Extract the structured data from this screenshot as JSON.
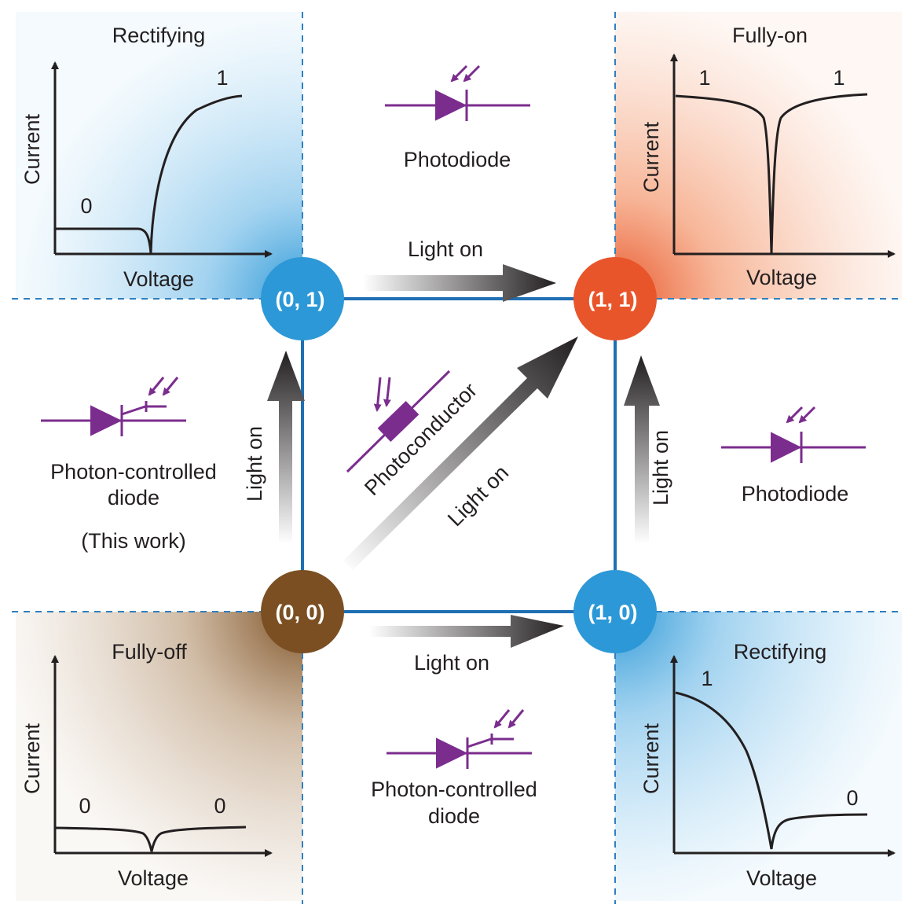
{
  "nodes": {
    "n00": {
      "label": "(0, 0)",
      "color": "#7b4f22"
    },
    "n01": {
      "label": "(0, 1)",
      "color": "#2c98d7"
    },
    "n10": {
      "label": "(1, 0)",
      "color": "#2c98d7"
    },
    "n11": {
      "label": "(1, 1)",
      "color": "#e8552a"
    }
  },
  "arrows": {
    "top": "Light on",
    "bottom": "Light on",
    "left": "Light on",
    "right": "Light on",
    "diagonal": "Light on"
  },
  "devices": {
    "top": "Photodiode",
    "right": "Photodiode",
    "center": "Photoconductor",
    "left_line1": "Photon-controlled",
    "left_line2": "diode",
    "left_note": "(This work)",
    "bottom_line1": "Photon-controlled",
    "bottom_line2": "diode"
  },
  "plots": {
    "top_left": {
      "title": "Rectifying",
      "xlabel": "Voltage",
      "ylabel": "Current",
      "state_low": "0",
      "state_high": "1"
    },
    "top_right": {
      "title": "Fully-on",
      "xlabel": "Voltage",
      "ylabel": "Current",
      "state_left": "1",
      "state_right": "1"
    },
    "bottom_left": {
      "title": "Fully-off",
      "xlabel": "Voltage",
      "ylabel": "Current",
      "state_left": "0",
      "state_right": "0"
    },
    "bottom_right": {
      "title": "Rectifying",
      "xlabel": "Voltage",
      "ylabel": "Current",
      "state_high": "1",
      "state_low": "0"
    }
  },
  "colors": {
    "blue": "#2c98d7",
    "orange": "#e8552a",
    "brown": "#7b4f22",
    "purple": "#7b2d8e",
    "edge": "#1f6fb3"
  }
}
